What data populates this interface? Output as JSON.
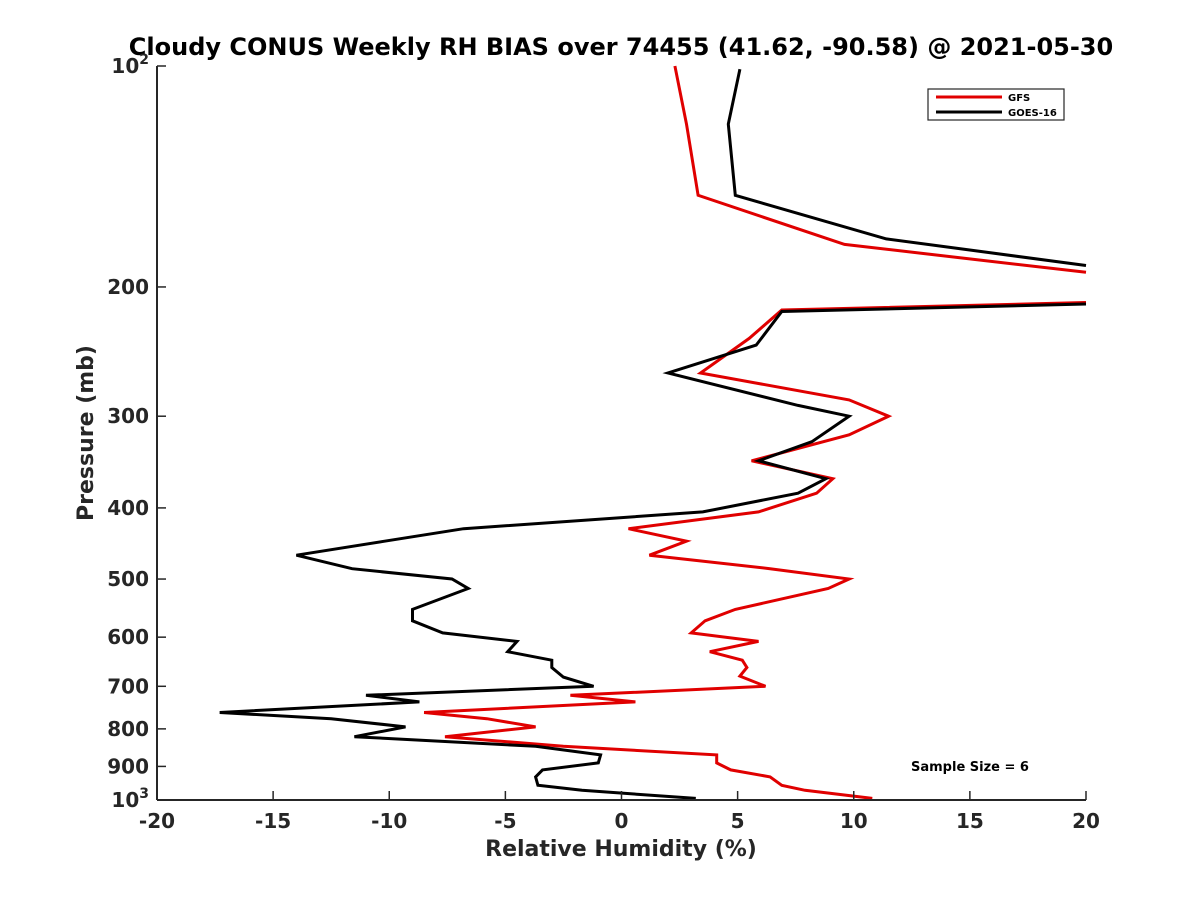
{
  "chart_data": {
    "type": "line",
    "title": "Cloudy CONUS Weekly RH BIAS over 74455 (41.62, -90.58) @ 2021-05-30",
    "xlabel": "Relative Humidity (%)",
    "ylabel": "Pressure (mb)",
    "xlim": [
      -20,
      20
    ],
    "ylim": [
      100,
      1000
    ],
    "y_scale": "log",
    "y_reversed": true,
    "grid": false,
    "legend_position": "top-right",
    "annotation": "Sample Size = 6",
    "x_ticks": [
      "-20",
      "-15",
      "-10",
      "-5",
      "0",
      "5",
      "10",
      "15",
      "20"
    ],
    "y_ticks": [
      {
        "value": 100,
        "base": "10",
        "exp": "2"
      },
      {
        "value": 200,
        "label": "200"
      },
      {
        "value": 300,
        "label": "300"
      },
      {
        "value": 400,
        "label": "400"
      },
      {
        "value": 500,
        "label": "500"
      },
      {
        "value": 600,
        "label": "600"
      },
      {
        "value": 700,
        "label": "700"
      },
      {
        "value": 800,
        "label": "800"
      },
      {
        "value": 900,
        "label": "900"
      },
      {
        "value": 1000,
        "base": "10",
        "exp": "3"
      }
    ],
    "series": [
      {
        "name": "GFS",
        "color": "#e00000",
        "segments": [
          [
            [
              2.3,
              100
            ],
            [
              2.8,
              120
            ],
            [
              3.3,
              150
            ],
            [
              9.6,
              175
            ],
            [
              20,
              191
            ]
          ],
          [
            [
              20,
              210
            ],
            [
              6.9,
              215
            ],
            [
              5.5,
              235
            ],
            [
              3.4,
              262
            ],
            [
              9.8,
              285
            ],
            [
              11.5,
              300
            ],
            [
              9.8,
              318
            ],
            [
              5.6,
              345
            ],
            [
              9.1,
              365
            ],
            [
              8.4,
              382
            ],
            [
              5.9,
              405
            ],
            [
              0.3,
              427
            ],
            [
              2.8,
              444
            ],
            [
              1.2,
              464
            ],
            [
              6.4,
              484
            ],
            [
              9.8,
              500
            ],
            [
              8.9,
              515
            ],
            [
              4.9,
              550
            ],
            [
              3.6,
              570
            ],
            [
              3.0,
              592
            ],
            [
              5.9,
              608
            ],
            [
              3.8,
              628
            ],
            [
              5.2,
              645
            ],
            [
              5.4,
              660
            ],
            [
              5.1,
              678
            ],
            [
              6.2,
              700
            ],
            [
              -2.2,
              720
            ],
            [
              0.6,
              735
            ],
            [
              -8.5,
              760
            ],
            [
              -5.8,
              775
            ],
            [
              -3.7,
              795
            ],
            [
              -7.6,
              820
            ],
            [
              -2.5,
              845
            ],
            [
              4.1,
              868
            ],
            [
              4.1,
              890
            ],
            [
              4.7,
              910
            ],
            [
              6.4,
              930
            ],
            [
              6.9,
              955
            ],
            [
              7.9,
              970
            ],
            [
              10.8,
              995
            ]
          ]
        ]
      },
      {
        "name": "GOES-16",
        "color": "#000000",
        "segments": [
          [
            [
              5.1,
              101
            ],
            [
              4.6,
              120
            ],
            [
              4.9,
              150
            ],
            [
              11.4,
              172
            ],
            [
              20,
              187
            ]
          ],
          [
            [
              20,
              211
            ],
            [
              6.9,
              216
            ],
            [
              5.8,
              240
            ],
            [
              2.0,
              262
            ],
            [
              7.6,
              290
            ],
            [
              9.8,
              300
            ],
            [
              8.2,
              325
            ],
            [
              5.9,
              345
            ],
            [
              8.8,
              365
            ],
            [
              7.6,
              382
            ],
            [
              3.5,
              405
            ],
            [
              -6.8,
              427
            ],
            [
              -10.2,
              444
            ],
            [
              -14.0,
              464
            ],
            [
              -11.6,
              484
            ],
            [
              -7.3,
              500
            ],
            [
              -6.6,
              515
            ],
            [
              -9.0,
              550
            ],
            [
              -9.0,
              570
            ],
            [
              -7.7,
              592
            ],
            [
              -4.5,
              608
            ],
            [
              -4.9,
              628
            ],
            [
              -3.0,
              645
            ],
            [
              -3.0,
              660
            ],
            [
              -2.5,
              680
            ],
            [
              -1.2,
              700
            ],
            [
              -11.0,
              720
            ],
            [
              -8.7,
              735
            ],
            [
              -17.3,
              760
            ],
            [
              -12.5,
              775
            ],
            [
              -9.3,
              795
            ],
            [
              -11.5,
              820
            ],
            [
              -3.7,
              845
            ],
            [
              -0.9,
              868
            ],
            [
              -1.0,
              890
            ],
            [
              -3.4,
              910
            ],
            [
              -3.7,
              930
            ],
            [
              -3.6,
              955
            ],
            [
              -1.7,
              970
            ],
            [
              3.2,
              995
            ]
          ]
        ]
      }
    ]
  }
}
